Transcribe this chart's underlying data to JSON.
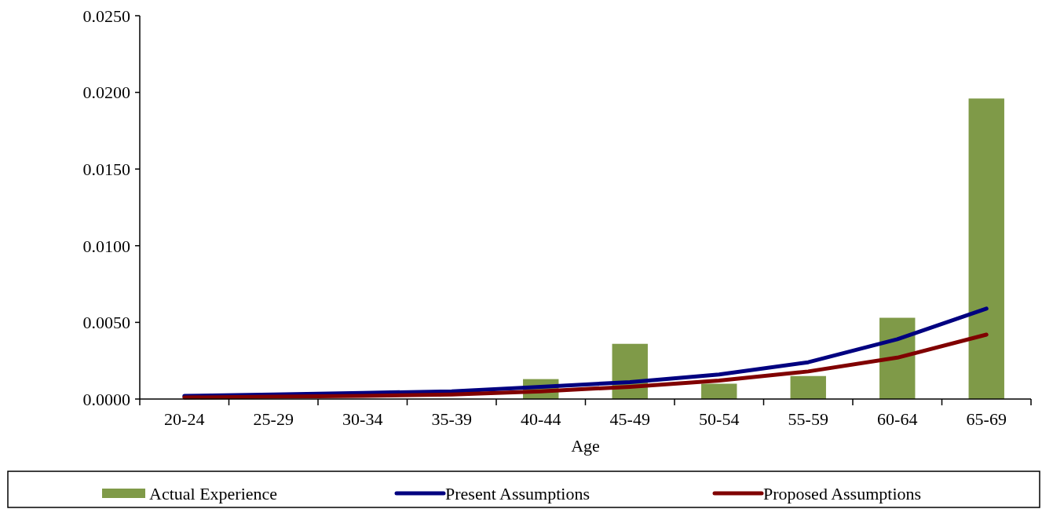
{
  "chart_data": {
    "type": "bar",
    "xlabel": "Age",
    "categories": [
      "20-24",
      "25-29",
      "30-34",
      "35-39",
      "40-44",
      "45-49",
      "50-54",
      "55-59",
      "60-64",
      "65-69"
    ],
    "series": [
      {
        "name": "Actual Experience",
        "color": "#7f9a48",
        "values": [
          null,
          null,
          null,
          null,
          0.0013,
          0.0036,
          0.001,
          0.0015,
          0.0053,
          0.0196
        ]
      },
      {
        "name": "Present Assumptions",
        "type": "line",
        "color": "#000080",
        "values": [
          0.0002,
          0.0003,
          0.0004,
          0.0005,
          0.0008,
          0.0011,
          0.0016,
          0.0024,
          0.0039,
          0.0059
        ]
      },
      {
        "name": "Proposed Assumptions",
        "type": "line",
        "color": "#800000",
        "values": [
          0.0001,
          0.00015,
          0.0002,
          0.0003,
          0.0005,
          0.0008,
          0.0012,
          0.0018,
          0.0027,
          0.0042
        ]
      }
    ],
    "ylim": [
      0,
      0.025
    ],
    "yticks": [
      {
        "value": 0,
        "label": "0.0000"
      },
      {
        "value": 0.005,
        "label": "0.0050"
      },
      {
        "value": 0.01,
        "label": "0.0100"
      },
      {
        "value": 0.015,
        "label": "0.0150"
      },
      {
        "value": 0.02,
        "label": "0.0200"
      },
      {
        "value": 0.025,
        "label": "0.0250"
      }
    ],
    "grid": false,
    "legend": "bottom",
    "line_style": "solid",
    "marker": "none"
  }
}
